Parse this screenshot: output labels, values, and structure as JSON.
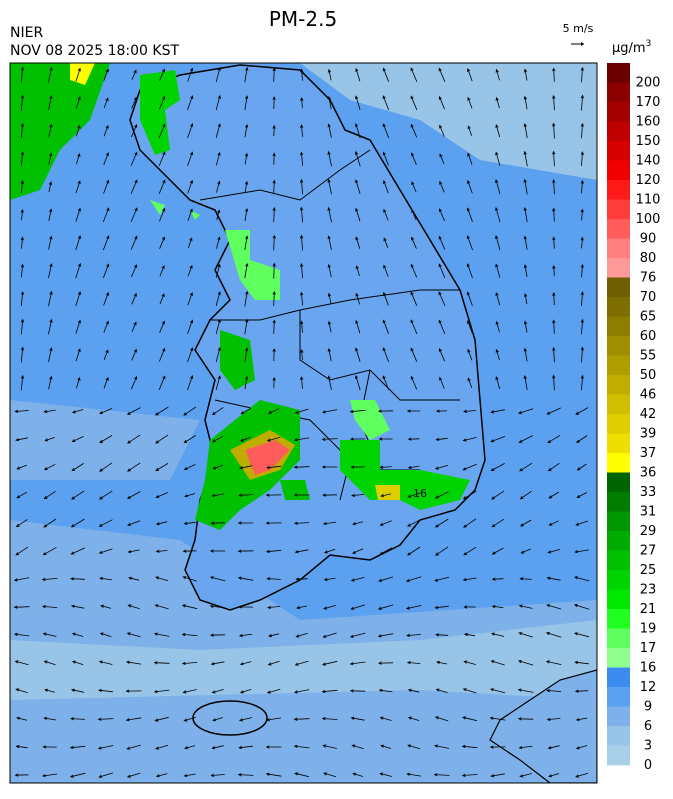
{
  "header": {
    "title": "PM-2.5",
    "org": "NIER",
    "datetime": "NOV 08 2025 18:00 KST",
    "wind_scale": "5 m/s",
    "unit": "μg/m",
    "unit_sup": "3"
  },
  "map": {
    "contour_label": "16"
  },
  "colorbar": [
    {
      "label": "200",
      "color": "#6b0000"
    },
    {
      "label": "170",
      "color": "#8b0000"
    },
    {
      "label": "160",
      "color": "#a50000"
    },
    {
      "label": "150",
      "color": "#bf0000"
    },
    {
      "label": "140",
      "color": "#d80000"
    },
    {
      "label": "120",
      "color": "#f00000"
    },
    {
      "label": "110",
      "color": "#ff1a1a"
    },
    {
      "label": "100",
      "color": "#ff3c3c"
    },
    {
      "label": "90",
      "color": "#ff5c5c"
    },
    {
      "label": "80",
      "color": "#ff7f7f"
    },
    {
      "label": "76",
      "color": "#ff9a9a"
    },
    {
      "label": "70",
      "color": "#6e5f00"
    },
    {
      "label": "65",
      "color": "#7e6e00"
    },
    {
      "label": "60",
      "color": "#8e7e00"
    },
    {
      "label": "55",
      "color": "#9e8e00"
    },
    {
      "label": "50",
      "color": "#ae9e00"
    },
    {
      "label": "46",
      "color": "#bfae00"
    },
    {
      "label": "42",
      "color": "#cfbf00"
    },
    {
      "label": "39",
      "color": "#dfcf00"
    },
    {
      "label": "37",
      "color": "#efdf00"
    },
    {
      "label": "36",
      "color": "#ffff00"
    },
    {
      "label": "33",
      "color": "#006400"
    },
    {
      "label": "31",
      "color": "#007d00"
    },
    {
      "label": "29",
      "color": "#009600"
    },
    {
      "label": "27",
      "color": "#00ab00"
    },
    {
      "label": "25",
      "color": "#00c000"
    },
    {
      "label": "23",
      "color": "#00d400"
    },
    {
      "label": "21",
      "color": "#00e800"
    },
    {
      "label": "19",
      "color": "#20ff20"
    },
    {
      "label": "17",
      "color": "#60ff60"
    },
    {
      "label": "16",
      "color": "#90ff90"
    },
    {
      "label": "12",
      "color": "#3c8cf0"
    },
    {
      "label": "9",
      "color": "#5ca0f0"
    },
    {
      "label": "6",
      "color": "#7eb0ea"
    },
    {
      "label": "3",
      "color": "#98c4e8"
    },
    {
      "label": "0",
      "color": "#a8d0e8"
    }
  ]
}
